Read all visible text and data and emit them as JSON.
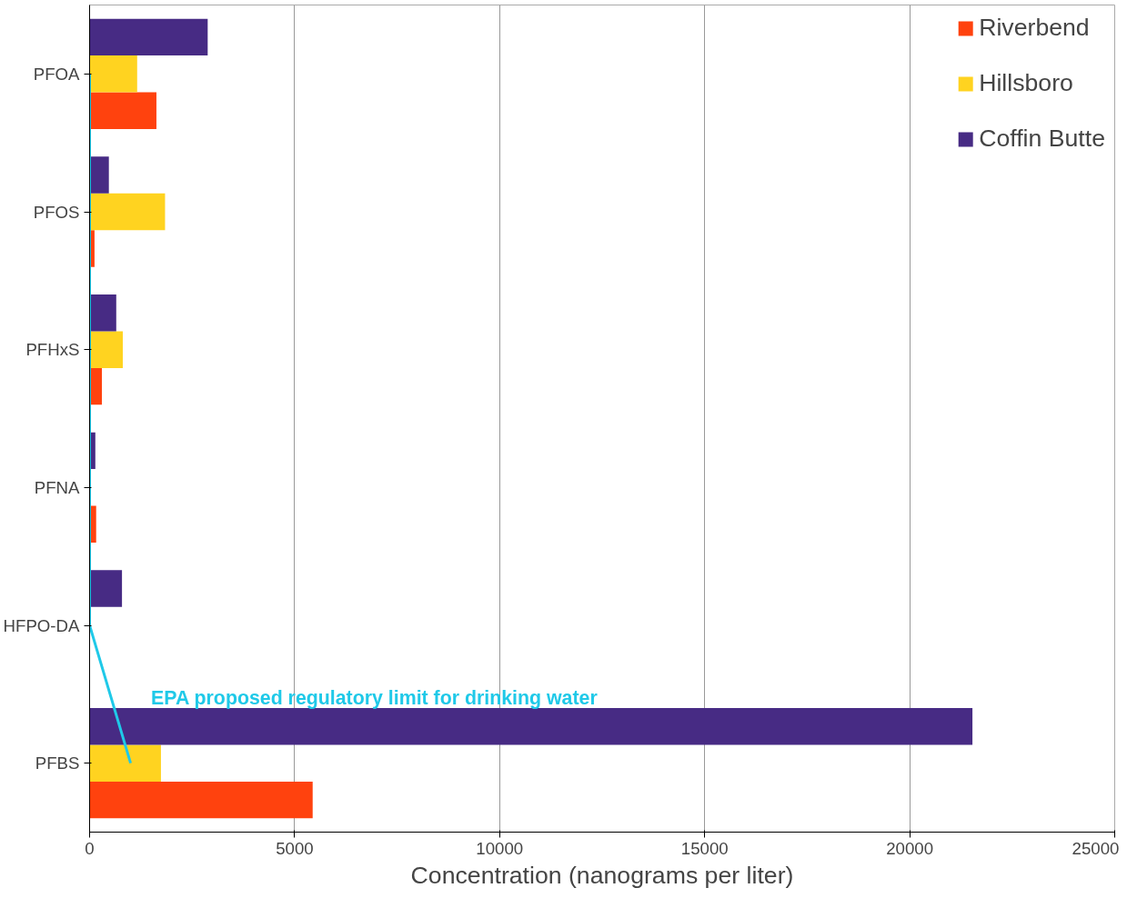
{
  "chart_data": {
    "type": "bar",
    "orientation": "horizontal",
    "xlabel": "Concentration (nanograms per liter)",
    "categories": [
      "PFOA",
      "PFOS",
      "PFHxS",
      "PFNA",
      "HFPO-DA",
      "PFBS"
    ],
    "series": [
      {
        "name": "Riverbend",
        "color": "#ff420e",
        "values": [
          1630,
          120,
          300,
          160,
          0,
          5440
        ]
      },
      {
        "name": "Hillsboro",
        "color": "#ffd320",
        "values": [
          1160,
          1840,
          810,
          0,
          0,
          1740
        ]
      },
      {
        "name": "Coffin Butte",
        "color": "#472b84",
        "values": [
          2880,
          470,
          650,
          140,
          790,
          21530
        ]
      },
      {
        "type": "line",
        "color": "#1fc9e8",
        "values": [
          0,
          0,
          0,
          0,
          0,
          1000
        ]
      }
    ],
    "annotations": [
      "EPA proposed regulatory limit for drinking water"
    ],
    "xlim": [
      0,
      25000
    ],
    "xticks": [
      0,
      5000,
      10000,
      15000,
      20000,
      25000
    ],
    "grid": "x",
    "legend": "top right"
  }
}
